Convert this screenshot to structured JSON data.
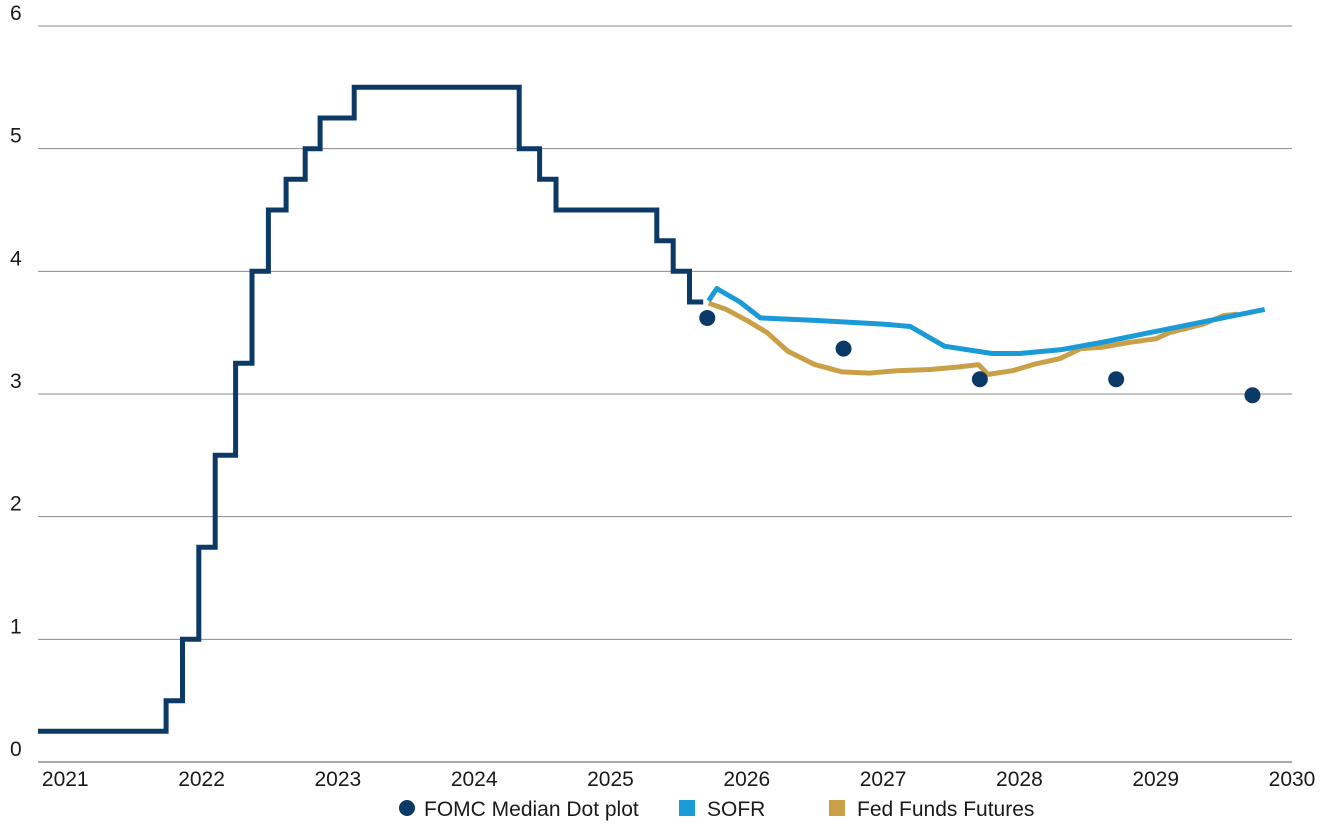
{
  "chart_data": {
    "type": "line",
    "title": "",
    "xlabel": "",
    "ylabel": "",
    "xlim": [
      2020.8,
      2030.0
    ],
    "ylim": [
      0,
      6
    ],
    "grid": true,
    "legend_position": "bottom",
    "yticks": [
      {
        "value": 0,
        "label": "0"
      },
      {
        "value": 1,
        "label": "1"
      },
      {
        "value": 2,
        "label": "2"
      },
      {
        "value": 3,
        "label": "3"
      },
      {
        "value": 4,
        "label": "4"
      },
      {
        "value": 5,
        "label": "5"
      },
      {
        "value": 6,
        "label": "6"
      }
    ],
    "xticks": [
      {
        "value": 2021,
        "label": "2021"
      },
      {
        "value": 2022,
        "label": "2022"
      },
      {
        "value": 2023,
        "label": "2023"
      },
      {
        "value": 2024,
        "label": "2024"
      },
      {
        "value": 2025,
        "label": "2025"
      },
      {
        "value": 2026,
        "label": "2026"
      },
      {
        "value": 2027,
        "label": "2027"
      },
      {
        "value": 2028,
        "label": "2028"
      },
      {
        "value": 2029,
        "label": "2029"
      },
      {
        "value": 2030,
        "label": "2030"
      }
    ],
    "series": [
      {
        "name": "",
        "kind": "step",
        "color": "#0b3a66",
        "points": [
          [
            2020.8,
            0.25
          ],
          [
            2021.74,
            0.25
          ],
          [
            2021.74,
            0.5
          ],
          [
            2021.86,
            0.5
          ],
          [
            2021.86,
            1.0
          ],
          [
            2021.98,
            1.0
          ],
          [
            2021.98,
            1.75
          ],
          [
            2022.1,
            1.75
          ],
          [
            2022.1,
            2.5
          ],
          [
            2022.25,
            2.5
          ],
          [
            2022.25,
            3.25
          ],
          [
            2022.37,
            3.25
          ],
          [
            2022.37,
            4.0
          ],
          [
            2022.49,
            4.0
          ],
          [
            2022.49,
            4.5
          ],
          [
            2022.62,
            4.5
          ],
          [
            2022.62,
            4.75
          ],
          [
            2022.76,
            4.75
          ],
          [
            2022.76,
            5.0
          ],
          [
            2022.87,
            5.0
          ],
          [
            2022.87,
            5.25
          ],
          [
            2023.12,
            5.25
          ],
          [
            2023.12,
            5.5
          ],
          [
            2024.33,
            5.5
          ],
          [
            2024.33,
            5.0
          ],
          [
            2024.48,
            5.0
          ],
          [
            2024.48,
            4.75
          ],
          [
            2024.6,
            4.75
          ],
          [
            2024.6,
            4.5
          ],
          [
            2025.34,
            4.5
          ],
          [
            2025.34,
            4.25
          ],
          [
            2025.46,
            4.25
          ],
          [
            2025.46,
            4.0
          ],
          [
            2025.58,
            4.0
          ],
          [
            2025.58,
            3.75
          ],
          [
            2025.68,
            3.75
          ]
        ]
      },
      {
        "name": "SOFR",
        "kind": "line",
        "color": "#1a9ad6",
        "points": [
          [
            2025.72,
            3.76
          ],
          [
            2025.78,
            3.86
          ],
          [
            2025.84,
            3.82
          ],
          [
            2025.95,
            3.75
          ],
          [
            2026.1,
            3.62
          ],
          [
            2026.5,
            3.6
          ],
          [
            2027.0,
            3.57
          ],
          [
            2027.2,
            3.55
          ],
          [
            2027.45,
            3.39
          ],
          [
            2027.8,
            3.33
          ],
          [
            2028.0,
            3.33
          ],
          [
            2028.3,
            3.36
          ],
          [
            2028.6,
            3.42
          ],
          [
            2029.0,
            3.51
          ],
          [
            2029.4,
            3.6
          ],
          [
            2029.8,
            3.69
          ]
        ]
      },
      {
        "name": "Fed Funds Futures",
        "kind": "line",
        "color": "#c9a048",
        "points": [
          [
            2025.72,
            3.74
          ],
          [
            2025.85,
            3.69
          ],
          [
            2026.0,
            3.6
          ],
          [
            2026.15,
            3.5
          ],
          [
            2026.3,
            3.35
          ],
          [
            2026.5,
            3.24
          ],
          [
            2026.7,
            3.18
          ],
          [
            2026.9,
            3.17
          ],
          [
            2027.1,
            3.19
          ],
          [
            2027.35,
            3.2
          ],
          [
            2027.55,
            3.22
          ],
          [
            2027.7,
            3.24
          ],
          [
            2027.77,
            3.16
          ],
          [
            2027.95,
            3.19
          ],
          [
            2028.1,
            3.24
          ],
          [
            2028.3,
            3.29
          ],
          [
            2028.45,
            3.37
          ],
          [
            2028.6,
            3.38
          ],
          [
            2028.8,
            3.42
          ],
          [
            2029.0,
            3.45
          ],
          [
            2029.1,
            3.5
          ],
          [
            2029.35,
            3.57
          ],
          [
            2029.5,
            3.64
          ],
          [
            2029.6,
            3.65
          ]
        ]
      }
    ],
    "dots": {
      "name": "FOMC Median Dot plot",
      "color": "#0b3a66",
      "points": [
        [
          2025.71,
          3.62
        ],
        [
          2026.71,
          3.37
        ],
        [
          2027.71,
          3.12
        ],
        [
          2028.71,
          3.12
        ],
        [
          2029.71,
          2.99
        ]
      ]
    },
    "legend": [
      {
        "label": "FOMC Median Dot plot",
        "marker": "circle",
        "color": "#0b3a66"
      },
      {
        "label": "SOFR",
        "marker": "square",
        "color": "#1a9ad6"
      },
      {
        "label": "Fed Funds Futures",
        "marker": "square",
        "color": "#c9a048"
      }
    ]
  }
}
